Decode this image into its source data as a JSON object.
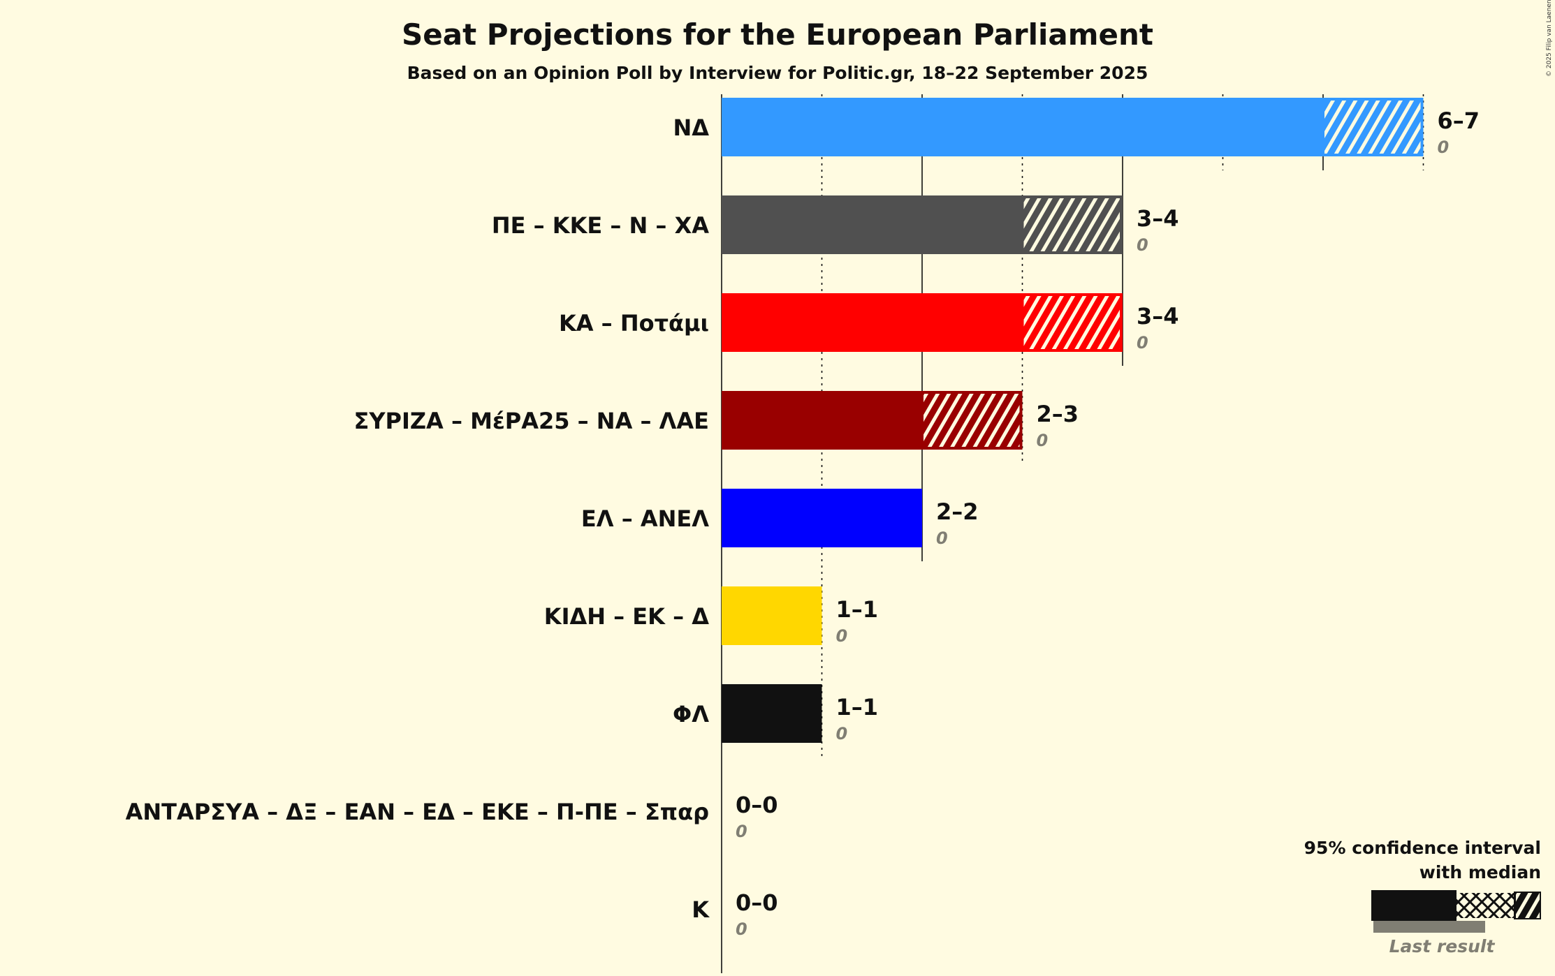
{
  "copyright": "© 2025 Filip van Laenen",
  "chart_data": {
    "type": "bar",
    "orientation": "horizontal",
    "title": "Seat Projections for the European Parliament",
    "subtitle": "Based on an Opinion Poll by Interview for Politic.gr, 18–22 September 2025",
    "xlim": [
      0,
      7
    ],
    "grid": true,
    "legend_placement": "bottom-right",
    "series": [
      {
        "name": "ΝΔ",
        "low": 6,
        "high": 7,
        "range_label": "6–7",
        "last_result": 0,
        "color": "#3399FF"
      },
      {
        "name": "ΠΕ – ΚΚΕ – Ν – ΧΑ",
        "low": 3,
        "high": 4,
        "range_label": "3–4",
        "last_result": 0,
        "color": "#505050"
      },
      {
        "name": "ΚΑ – Ποτάμι",
        "low": 3,
        "high": 4,
        "range_label": "3–4",
        "last_result": 0,
        "color": "#FF0000"
      },
      {
        "name": "ΣΥΡΙΖΑ – ΜέΡΑ25 – ΝΑ – ΛΑΕ",
        "low": 2,
        "high": 3,
        "range_label": "2–3",
        "last_result": 0,
        "color": "#990000"
      },
      {
        "name": "ΕΛ – ΑΝΕΛ",
        "low": 2,
        "high": 2,
        "range_label": "2–2",
        "last_result": 0,
        "color": "#0000FF"
      },
      {
        "name": "ΚΙΔΗ – ΕΚ – Δ",
        "low": 1,
        "high": 1,
        "range_label": "1–1",
        "last_result": 0,
        "color": "#FFD700"
      },
      {
        "name": "ΦΛ",
        "low": 1,
        "high": 1,
        "range_label": "1–1",
        "last_result": 0,
        "color": "#111111"
      },
      {
        "name": "ΑΝΤΑΡΣΥΑ – ΔΞ – ΕΑΝ – ΕΔ – ΕΚΕ – Π-ΠΕ – Σπαρ",
        "low": 0,
        "high": 0,
        "range_label": "0–0",
        "last_result": 0,
        "color": "#111111"
      },
      {
        "name": "Κ",
        "low": 0,
        "high": 0,
        "range_label": "0–0",
        "last_result": 0,
        "color": "#111111"
      }
    ],
    "legend": {
      "title_line1": "95% confidence interval",
      "title_line2": "with median",
      "last_result_label": "Last result"
    }
  }
}
